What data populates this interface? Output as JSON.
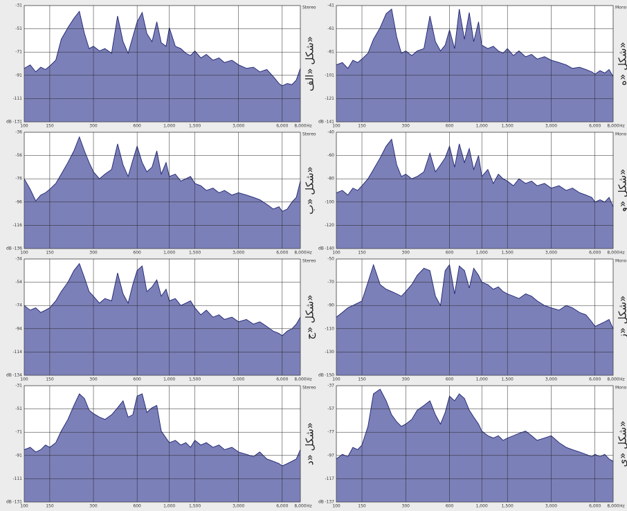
{
  "chart_data": [
    {
      "type": "area",
      "channel": "Stereo",
      "caption": "شكل «الف»",
      "ylabel": "dB",
      "xunit": "Hz",
      "xscale": "log",
      "grid": true,
      "fill": "#7c80b8",
      "line": "#1c2270",
      "x": [
        100,
        110,
        120,
        130,
        140,
        150,
        165,
        180,
        200,
        220,
        240,
        260,
        280,
        300,
        330,
        360,
        400,
        440,
        480,
        520,
        560,
        600,
        650,
        700,
        760,
        820,
        880,
        950,
        1000,
        1100,
        1200,
        1300,
        1400,
        1500,
        1650,
        1800,
        2000,
        2200,
        2400,
        2700,
        3000,
        3400,
        3800,
        4200,
        4700,
        5200,
        5700,
        6000,
        6500,
        7000,
        7500,
        8000
      ],
      "values": [
        -85,
        -82,
        -88,
        -84,
        -86,
        -83,
        -78,
        -60,
        -50,
        -42,
        -36,
        -55,
        -68,
        -66,
        -70,
        -68,
        -72,
        -40,
        -62,
        -72,
        -58,
        -45,
        -37,
        -55,
        -62,
        -45,
        -63,
        -66,
        -50,
        -66,
        -68,
        -72,
        -74,
        -70,
        -76,
        -73,
        -78,
        -76,
        -80,
        -78,
        -82,
        -85,
        -84,
        -88,
        -86,
        -92,
        -98,
        -100,
        -98,
        -99,
        -95,
        -85
      ],
      "xlim": [
        100,
        8000
      ],
      "xticks": [
        100,
        150,
        300,
        600,
        {
          "value": 1000,
          "label": "1,000"
        },
        {
          "value": 1500,
          "label": "1,500"
        },
        {
          "value": 3000,
          "label": "3,000"
        },
        {
          "value": 6000,
          "label": "6,000"
        },
        {
          "value": 8000,
          "label": "8,000"
        }
      ],
      "ylim": [
        -131,
        -31
      ],
      "yticks": [
        -131,
        -111,
        -91,
        -71,
        -51,
        -31
      ]
    },
    {
      "type": "area",
      "channel": "Mono",
      "caption": "شكل «ه»",
      "ylabel": "dB",
      "xunit": "Hz",
      "xscale": "log",
      "grid": true,
      "fill": "#7c80b8",
      "line": "#1c2270",
      "x": [
        100,
        110,
        120,
        130,
        140,
        150,
        165,
        180,
        200,
        220,
        240,
        260,
        280,
        300,
        330,
        360,
        400,
        440,
        480,
        520,
        560,
        600,
        650,
        700,
        760,
        820,
        880,
        950,
        1000,
        1100,
        1200,
        1300,
        1400,
        1500,
        1650,
        1800,
        2000,
        2200,
        2400,
        2700,
        3000,
        3400,
        3800,
        4200,
        4700,
        5200,
        5700,
        6000,
        6500,
        7000,
        7500,
        8000
      ],
      "values": [
        -92,
        -90,
        -95,
        -88,
        -90,
        -87,
        -82,
        -70,
        -60,
        -48,
        -44,
        -68,
        -82,
        -80,
        -84,
        -80,
        -78,
        -50,
        -72,
        -80,
        -75,
        -62,
        -78,
        -44,
        -70,
        -47,
        -72,
        -55,
        -75,
        -78,
        -76,
        -80,
        -82,
        -78,
        -84,
        -80,
        -85,
        -83,
        -87,
        -85,
        -88,
        -90,
        -92,
        -95,
        -94,
        -96,
        -98,
        -100,
        -97,
        -99,
        -96,
        -102
      ],
      "xlim": [
        100,
        8000
      ],
      "xticks": [
        100,
        150,
        300,
        600,
        {
          "value": 1000,
          "label": "1,000"
        },
        {
          "value": 1500,
          "label": "1,500"
        },
        {
          "value": 3000,
          "label": "3,000"
        },
        {
          "value": 6000,
          "label": "6,000"
        },
        {
          "value": 8000,
          "label": "8,000"
        }
      ],
      "ylim": [
        -141,
        -41
      ],
      "yticks": [
        -141,
        -121,
        -101,
        -81,
        -61,
        -41
      ]
    },
    {
      "type": "area",
      "channel": "Stereo",
      "caption": "شكل «ب»",
      "ylabel": "dB",
      "xunit": "Hz",
      "xscale": "log",
      "grid": true,
      "fill": "#7c80b8",
      "line": "#1c2270",
      "x": [
        100,
        110,
        120,
        130,
        140,
        150,
        165,
        180,
        200,
        220,
        240,
        260,
        280,
        300,
        330,
        360,
        400,
        440,
        480,
        520,
        560,
        600,
        650,
        700,
        760,
        820,
        880,
        950,
        1000,
        1100,
        1200,
        1300,
        1400,
        1500,
        1650,
        1800,
        2000,
        2200,
        2400,
        2700,
        3000,
        3400,
        3800,
        4200,
        4700,
        5200,
        5700,
        6000,
        6500,
        7000,
        7500,
        8000
      ],
      "values": [
        -76,
        -85,
        -95,
        -90,
        -88,
        -85,
        -80,
        -72,
        -62,
        -52,
        -40,
        -52,
        -62,
        -70,
        -76,
        -72,
        -68,
        -46,
        -64,
        -74,
        -60,
        -48,
        -62,
        -70,
        -66,
        -52,
        -72,
        -62,
        -74,
        -72,
        -78,
        -76,
        -74,
        -80,
        -82,
        -86,
        -84,
        -88,
        -86,
        -90,
        -88,
        -90,
        -92,
        -94,
        -98,
        -102,
        -100,
        -104,
        -102,
        -96,
        -92,
        -78
      ],
      "xlim": [
        100,
        8000
      ],
      "xticks": [
        100,
        150,
        300,
        600,
        {
          "value": 1000,
          "label": "1,000"
        },
        {
          "value": 1500,
          "label": "1,500"
        },
        {
          "value": 3000,
          "label": "3,000"
        },
        {
          "value": 6000,
          "label": "6,000"
        },
        {
          "value": 8000,
          "label": "8,000"
        }
      ],
      "ylim": [
        -136,
        -36
      ],
      "yticks": [
        -136,
        -116,
        -96,
        -76,
        -56,
        -36
      ]
    },
    {
      "type": "area",
      "channel": "Mono",
      "caption": "شكل «و»",
      "ylabel": "dB",
      "xunit": "Hz",
      "xscale": "log",
      "grid": true,
      "fill": "#7c80b8",
      "line": "#1c2270",
      "x": [
        100,
        110,
        120,
        130,
        140,
        150,
        165,
        180,
        200,
        220,
        240,
        260,
        280,
        300,
        330,
        360,
        400,
        440,
        480,
        520,
        560,
        600,
        650,
        700,
        760,
        820,
        880,
        950,
        1000,
        1100,
        1200,
        1300,
        1400,
        1500,
        1650,
        1800,
        2000,
        2200,
        2400,
        2700,
        3000,
        3400,
        3800,
        4200,
        4700,
        5200,
        5700,
        6000,
        6500,
        7000,
        7500,
        8000
      ],
      "values": [
        -92,
        -90,
        -94,
        -88,
        -90,
        -86,
        -80,
        -72,
        -62,
        -52,
        -46,
        -68,
        -78,
        -76,
        -80,
        -78,
        -74,
        -58,
        -74,
        -68,
        -62,
        -52,
        -70,
        -50,
        -66,
        -54,
        -72,
        -60,
        -78,
        -72,
        -84,
        -76,
        -80,
        -82,
        -86,
        -80,
        -84,
        -82,
        -86,
        -84,
        -88,
        -86,
        -90,
        -88,
        -92,
        -94,
        -96,
        -100,
        -98,
        -100,
        -96,
        -104
      ],
      "xlim": [
        100,
        8000
      ],
      "xticks": [
        100,
        150,
        300,
        600,
        {
          "value": 1000,
          "label": "1,000"
        },
        {
          "value": 1500,
          "label": "1,500"
        },
        {
          "value": 3000,
          "label": "3,000"
        },
        {
          "value": 6000,
          "label": "6,000"
        },
        {
          "value": 8000,
          "label": "8,000"
        }
      ],
      "ylim": [
        -140,
        -40
      ],
      "yticks": [
        -140,
        -120,
        -100,
        -80,
        -60,
        -40
      ]
    },
    {
      "type": "area",
      "channel": "Stereo",
      "caption": "شكل «ج»",
      "ylabel": "dB",
      "xunit": "Hz",
      "xscale": "log",
      "grid": true,
      "fill": "#7c80b8",
      "line": "#1c2270",
      "x": [
        100,
        110,
        120,
        130,
        140,
        150,
        165,
        180,
        200,
        220,
        240,
        260,
        280,
        300,
        330,
        360,
        400,
        440,
        480,
        520,
        560,
        600,
        650,
        700,
        760,
        820,
        880,
        950,
        1000,
        1100,
        1200,
        1300,
        1400,
        1500,
        1650,
        1800,
        2000,
        2200,
        2400,
        2700,
        3000,
        3400,
        3800,
        4200,
        4700,
        5200,
        5700,
        6000,
        6500,
        7000,
        7500,
        8000
      ],
      "values": [
        -74,
        -78,
        -76,
        -80,
        -78,
        -76,
        -70,
        -62,
        -54,
        -44,
        -38,
        -50,
        -62,
        -66,
        -72,
        -68,
        -70,
        -46,
        -64,
        -72,
        -56,
        -44,
        -40,
        -62,
        -58,
        -52,
        -66,
        -60,
        -70,
        -68,
        -74,
        -72,
        -70,
        -76,
        -82,
        -78,
        -84,
        -82,
        -86,
        -84,
        -88,
        -86,
        -90,
        -88,
        -92,
        -96,
        -98,
        -100,
        -96,
        -94,
        -90,
        -84
      ],
      "xlim": [
        100,
        8000
      ],
      "xticks": [
        100,
        150,
        300,
        600,
        {
          "value": 1000,
          "label": "1,000"
        },
        {
          "value": 1500,
          "label": "1,500"
        },
        {
          "value": 3000,
          "label": "3,000"
        },
        {
          "value": 6000,
          "label": "6,000"
        },
        {
          "value": 8000,
          "label": "8,000"
        }
      ],
      "ylim": [
        -134,
        -34
      ],
      "yticks": [
        -134,
        -114,
        -94,
        -74,
        -54,
        -34
      ]
    },
    {
      "type": "area",
      "channel": "Mono",
      "caption": "شكل «ز»",
      "ylabel": "dB",
      "xunit": "Hz",
      "xscale": "log",
      "grid": true,
      "fill": "#7c80b8",
      "line": "#1c2270",
      "x": [
        100,
        110,
        120,
        130,
        140,
        150,
        165,
        180,
        200,
        220,
        240,
        260,
        280,
        300,
        330,
        360,
        400,
        440,
        480,
        520,
        560,
        600,
        650,
        700,
        760,
        820,
        880,
        950,
        1000,
        1100,
        1200,
        1300,
        1400,
        1500,
        1650,
        1800,
        2000,
        2200,
        2400,
        2700,
        3000,
        3400,
        3800,
        4200,
        4700,
        5200,
        5700,
        6000,
        6500,
        7000,
        7500,
        8000
      ],
      "values": [
        -100,
        -96,
        -92,
        -90,
        -88,
        -86,
        -70,
        -55,
        -72,
        -76,
        -78,
        -80,
        -82,
        -78,
        -72,
        -64,
        -58,
        -60,
        -82,
        -90,
        -60,
        -55,
        -80,
        -56,
        -60,
        -75,
        -58,
        -64,
        -70,
        -72,
        -76,
        -74,
        -78,
        -80,
        -82,
        -84,
        -80,
        -82,
        -86,
        -90,
        -92,
        -94,
        -90,
        -92,
        -96,
        -98,
        -104,
        -108,
        -106,
        -104,
        -102,
        -110
      ],
      "xlim": [
        100,
        8000
      ],
      "xticks": [
        100,
        150,
        300,
        600,
        {
          "value": 1000,
          "label": "1,000"
        },
        {
          "value": 1500,
          "label": "1,500"
        },
        {
          "value": 3000,
          "label": "3,000"
        },
        {
          "value": 6000,
          "label": "6,000"
        },
        {
          "value": 8000,
          "label": "8,000"
        }
      ],
      "ylim": [
        -150,
        -50
      ],
      "yticks": [
        -150,
        -130,
        -110,
        -90,
        -70,
        -50
      ]
    },
    {
      "type": "area",
      "channel": "Stereo",
      "caption": "شكل «د»",
      "ylabel": "dB",
      "xunit": "Hz",
      "xscale": "log",
      "grid": true,
      "fill": "#7c80b8",
      "line": "#1c2270",
      "x": [
        100,
        110,
        120,
        130,
        140,
        150,
        165,
        180,
        200,
        220,
        240,
        260,
        280,
        300,
        330,
        360,
        400,
        440,
        480,
        520,
        560,
        600,
        650,
        700,
        760,
        820,
        880,
        950,
        1000,
        1100,
        1200,
        1300,
        1400,
        1500,
        1650,
        1800,
        2000,
        2200,
        2400,
        2700,
        3000,
        3400,
        3800,
        4200,
        4700,
        5200,
        5700,
        6000,
        6500,
        7000,
        7500,
        8000
      ],
      "values": [
        -86,
        -84,
        -88,
        -86,
        -82,
        -84,
        -80,
        -70,
        -60,
        -48,
        -38,
        -42,
        -52,
        -55,
        -58,
        -60,
        -56,
        -50,
        -44,
        -58,
        -56,
        -40,
        -38,
        -54,
        -50,
        -48,
        -70,
        -76,
        -80,
        -78,
        -82,
        -80,
        -84,
        -78,
        -82,
        -80,
        -84,
        -82,
        -86,
        -84,
        -88,
        -90,
        -92,
        -88,
        -94,
        -96,
        -98,
        -100,
        -98,
        -96,
        -94,
        -86
      ],
      "xlim": [
        100,
        8000
      ],
      "xticks": [
        100,
        150,
        300,
        600,
        {
          "value": 1000,
          "label": "1,000"
        },
        {
          "value": 1500,
          "label": "1,500"
        },
        {
          "value": 3000,
          "label": "3,000"
        },
        {
          "value": 6000,
          "label": "6,000"
        },
        {
          "value": 8000,
          "label": "8,000"
        }
      ],
      "ylim": [
        -131,
        -31
      ],
      "yticks": [
        -131,
        -111,
        -91,
        -71,
        -51,
        -31
      ]
    },
    {
      "type": "area",
      "channel": "Mono",
      "caption": "شكل «ي»",
      "ylabel": "dB",
      "xunit": "Hz",
      "xscale": "log",
      "grid": true,
      "fill": "#7c80b8",
      "line": "#1c2270",
      "x": [
        100,
        110,
        120,
        130,
        140,
        150,
        165,
        180,
        200,
        220,
        240,
        260,
        280,
        300,
        330,
        360,
        400,
        440,
        480,
        520,
        560,
        600,
        650,
        700,
        760,
        820,
        880,
        950,
        1000,
        1100,
        1200,
        1300,
        1400,
        1500,
        1650,
        1800,
        2000,
        2200,
        2400,
        2700,
        3000,
        3400,
        3800,
        4200,
        4700,
        5200,
        5700,
        6000,
        6500,
        7000,
        7500,
        8000
      ],
      "values": [
        -100,
        -96,
        -98,
        -90,
        -92,
        -88,
        -72,
        -44,
        -40,
        -50,
        -62,
        -68,
        -72,
        -70,
        -66,
        -58,
        -54,
        -50,
        -62,
        -70,
        -60,
        -46,
        -50,
        -44,
        -48,
        -58,
        -64,
        -70,
        -76,
        -80,
        -82,
        -80,
        -84,
        -82,
        -80,
        -78,
        -76,
        -80,
        -84,
        -82,
        -80,
        -86,
        -90,
        -92,
        -94,
        -96,
        -98,
        -96,
        -98,
        -96,
        -100,
        -102
      ],
      "xlim": [
        100,
        8000
      ],
      "xticks": [
        100,
        150,
        300,
        600,
        {
          "value": 1000,
          "label": "1,000"
        },
        {
          "value": 1500,
          "label": "1,500"
        },
        {
          "value": 3000,
          "label": "3,000"
        },
        {
          "value": 6000,
          "label": "6,000"
        },
        {
          "value": 8000,
          "label": "8,000"
        }
      ],
      "ylim": [
        -137,
        -37
      ],
      "yticks": [
        -137,
        -117,
        -97,
        -77,
        -57,
        -37
      ]
    }
  ]
}
